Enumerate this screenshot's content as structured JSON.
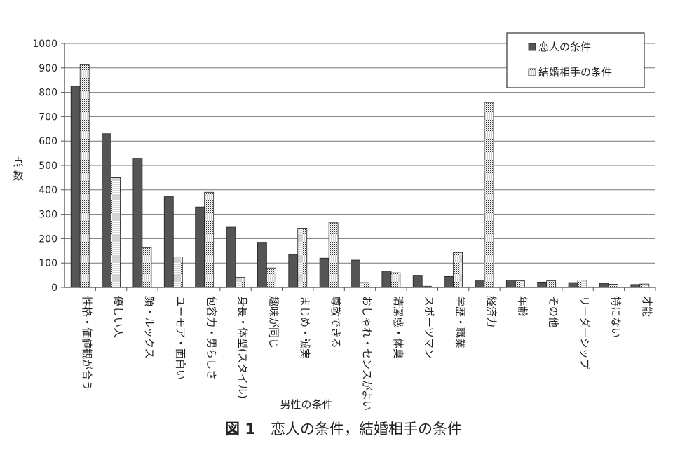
{
  "chart_data": {
    "type": "bar",
    "xlabel": "男性の条件",
    "ylabel": "点数",
    "ylim": [
      0,
      1000
    ],
    "yticks": [
      0,
      100,
      200,
      300,
      400,
      500,
      600,
      700,
      800,
      900,
      1000
    ],
    "grid": true,
    "legend_position": "top-right",
    "categories": [
      "性格・価値観が合う",
      "優しい人",
      "顔・ルックス",
      "ユーモア・面白い",
      "包容力・男らしさ",
      "身長・体型(スタイル)",
      "趣味が同じ",
      "まじめ・誠実",
      "尊敬できる",
      "おしゃれ・センスがよい",
      "清潔感・体臭",
      "スポーツマン",
      "学歴・職業",
      "経済力",
      "年齢",
      "その他",
      "リーダーシップ",
      "特にない",
      "才能"
    ],
    "series": [
      {
        "name": "恋人の条件",
        "fill": "#555555",
        "values": [
          825,
          630,
          530,
          372,
          330,
          247,
          185,
          135,
          120,
          112,
          67,
          50,
          45,
          30,
          30,
          22,
          20,
          17,
          12
        ]
      },
      {
        "name": "結婚相手の条件",
        "fill": "dotted",
        "values": [
          912,
          450,
          162,
          125,
          390,
          42,
          80,
          243,
          265,
          20,
          60,
          5,
          143,
          758,
          28,
          27,
          30,
          13,
          14
        ]
      }
    ]
  },
  "caption": {
    "figure_no": "図 1",
    "text": "恋人の条件，結婚相手の条件"
  },
  "colors": {
    "axis": "#555555",
    "grid": "#666666",
    "bar_dark": "#555555",
    "bar_dot_bg": "#ffffff",
    "bar_dot": "#333333"
  }
}
